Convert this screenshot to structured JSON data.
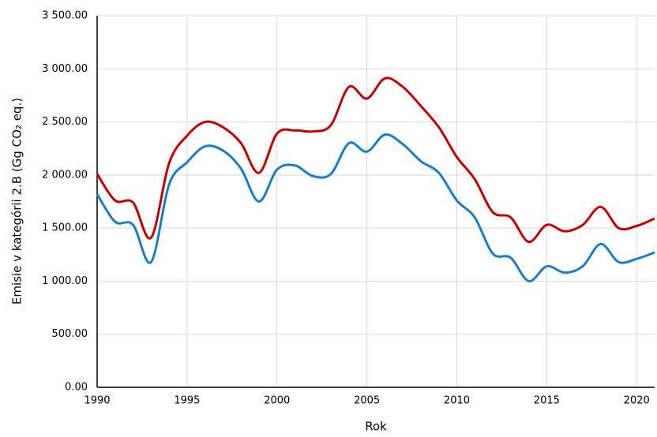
{
  "chart_data": {
    "type": "line",
    "x_label": "Rok",
    "y_label": "Emisie v kategórii 2.B (Gg CO₂ eq.)",
    "x": [
      1990,
      1991,
      1992,
      1993,
      1994,
      1995,
      1996,
      1997,
      1998,
      1999,
      2000,
      2001,
      2002,
      2003,
      2004,
      2005,
      2006,
      2007,
      2008,
      2009,
      2010,
      2011,
      2012,
      2013,
      2014,
      2015,
      2016,
      2017,
      2018,
      2019,
      2020,
      2021
    ],
    "series": [
      {
        "color": "#c00000",
        "values": [
          2010,
          1760,
          1740,
          1410,
          2110,
          2370,
          2500,
          2450,
          2300,
          2020,
          2390,
          2420,
          2410,
          2470,
          2830,
          2720,
          2910,
          2830,
          2650,
          2450,
          2170,
          1960,
          1650,
          1600,
          1370,
          1530,
          1470,
          1530,
          1700,
          1500,
          1520,
          1590
        ]
      },
      {
        "color": "#1a7dc8",
        "values": [
          1820,
          1560,
          1530,
          1180,
          1910,
          2120,
          2270,
          2230,
          2060,
          1750,
          2050,
          2090,
          1990,
          2010,
          2300,
          2220,
          2380,
          2290,
          2130,
          2020,
          1760,
          1600,
          1260,
          1220,
          1000,
          1140,
          1080,
          1140,
          1350,
          1180,
          1210,
          1270
        ]
      }
    ],
    "xlim": [
      1990,
      2021
    ],
    "xticks": [
      1990,
      1995,
      2000,
      2005,
      2010,
      2015,
      2020
    ],
    "ylim": [
      0,
      3500
    ],
    "yticks": [
      {
        "value": 0,
        "label": "0.00"
      },
      {
        "value": 500,
        "label": "500.00"
      },
      {
        "value": 1000,
        "label": "1 000.00"
      },
      {
        "value": 1500,
        "label": "1 500.00"
      },
      {
        "value": 2000,
        "label": "2 000.00"
      },
      {
        "value": 2500,
        "label": "2 500.00"
      },
      {
        "value": 3000,
        "label": "3 000.00"
      },
      {
        "value": 3500,
        "label": "3 500.00"
      }
    ],
    "grid": true
  }
}
